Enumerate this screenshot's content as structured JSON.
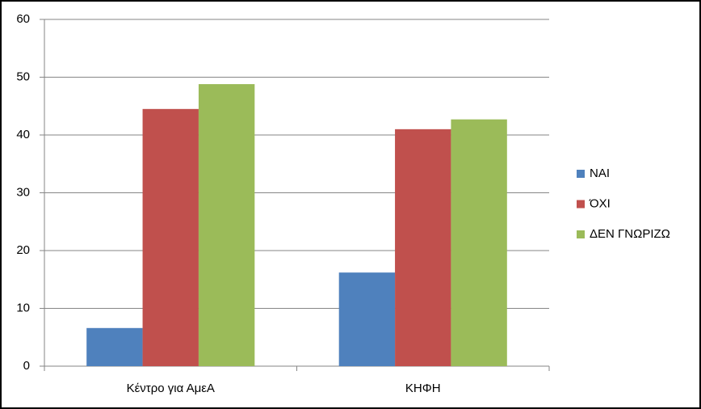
{
  "chart_data": {
    "type": "bar",
    "categories": [
      "Κέντρο για ΑμεΑ",
      "ΚΗΦΗ"
    ],
    "series": [
      {
        "name": "ΝΑΙ",
        "color": "#4f81bd",
        "values": [
          6.6,
          16.2
        ]
      },
      {
        "name": "ΌΧΙ",
        "color": "#c0504d",
        "values": [
          44.5,
          41.0
        ]
      },
      {
        "name": "ΔΕΝ ΓΝΩΡΙΖΩ",
        "color": "#9bbb59",
        "values": [
          48.8,
          42.7
        ]
      }
    ],
    "ylim": [
      0,
      60
    ],
    "yticks": [
      0,
      10,
      20,
      30,
      40,
      50,
      60
    ],
    "grid": true,
    "legend": "right"
  }
}
